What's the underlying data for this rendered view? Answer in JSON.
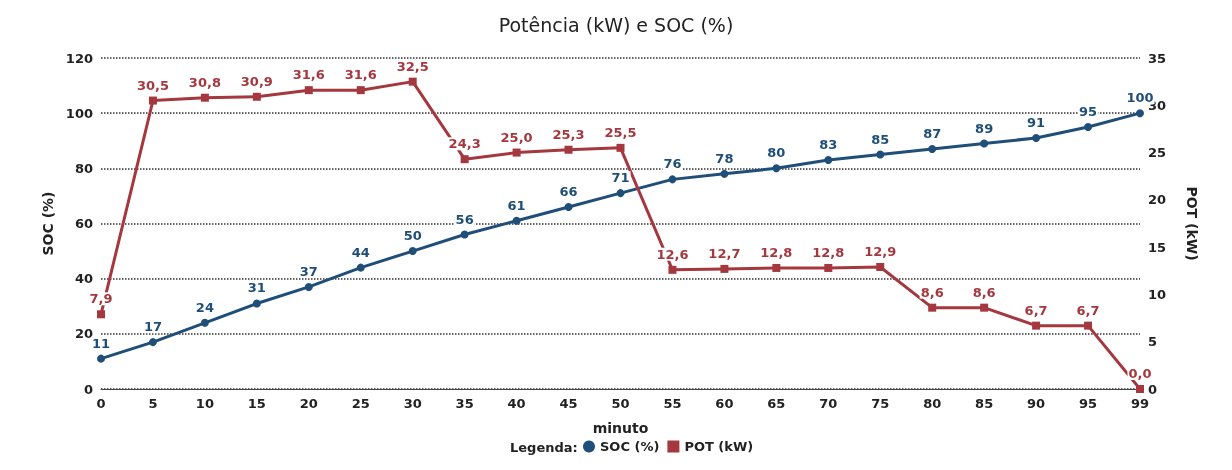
{
  "chart_data": {
    "type": "line",
    "title": "Potência (kW) e SOC (%)",
    "xlabel": "minuto",
    "ylabel": "SOC (%)",
    "y2label": "POT (kW)",
    "legend_title": "Legenda:",
    "categories": [
      "0",
      "5",
      "10",
      "15",
      "20",
      "25",
      "30",
      "35",
      "40",
      "45",
      "50",
      "55",
      "60",
      "65",
      "70",
      "75",
      "80",
      "85",
      "90",
      "95",
      "99"
    ],
    "series": [
      {
        "name": "SOC (%)",
        "color": "#1f4e79",
        "marker": "circle",
        "values": [
          11,
          17,
          24,
          31,
          37,
          44,
          50,
          56,
          61,
          66,
          71,
          76,
          78,
          80,
          83,
          85,
          87,
          89,
          91,
          95,
          100
        ],
        "value_labels": [
          "11",
          "17",
          "24",
          "31",
          "37",
          "44",
          "50",
          "56",
          "61",
          "66",
          "71",
          "76",
          "78",
          "80",
          "83",
          "85",
          "87",
          "89",
          "91",
          "95",
          "100"
        ]
      },
      {
        "name": "POT (kW)",
        "color": "#a5383f",
        "marker": "square",
        "axis": "y2",
        "values": [
          7.9,
          30.5,
          30.8,
          30.9,
          31.6,
          31.6,
          32.5,
          24.3,
          25.0,
          25.3,
          25.5,
          12.6,
          12.7,
          12.8,
          12.8,
          12.9,
          8.6,
          8.6,
          6.7,
          6.7,
          0.0
        ],
        "value_labels": [
          "7,9",
          "30,5",
          "30,8",
          "30,9",
          "31,6",
          "31,6",
          "32,5",
          "24,3",
          "25,0",
          "25,3",
          "25,5",
          "12,6",
          "12,7",
          "12,8",
          "12,8",
          "12,9",
          "8,6",
          "8,6",
          "6,7",
          "6,7",
          "0,0"
        ]
      }
    ],
    "ylim": [
      0,
      120
    ],
    "yticks": [
      0,
      20,
      40,
      60,
      80,
      100,
      120
    ],
    "y2lim": [
      0,
      35
    ],
    "y2ticks": [
      0,
      5,
      10,
      15,
      20,
      25,
      30,
      35
    ],
    "grid": "y",
    "legend": "bottom",
    "line_style": "solid"
  }
}
